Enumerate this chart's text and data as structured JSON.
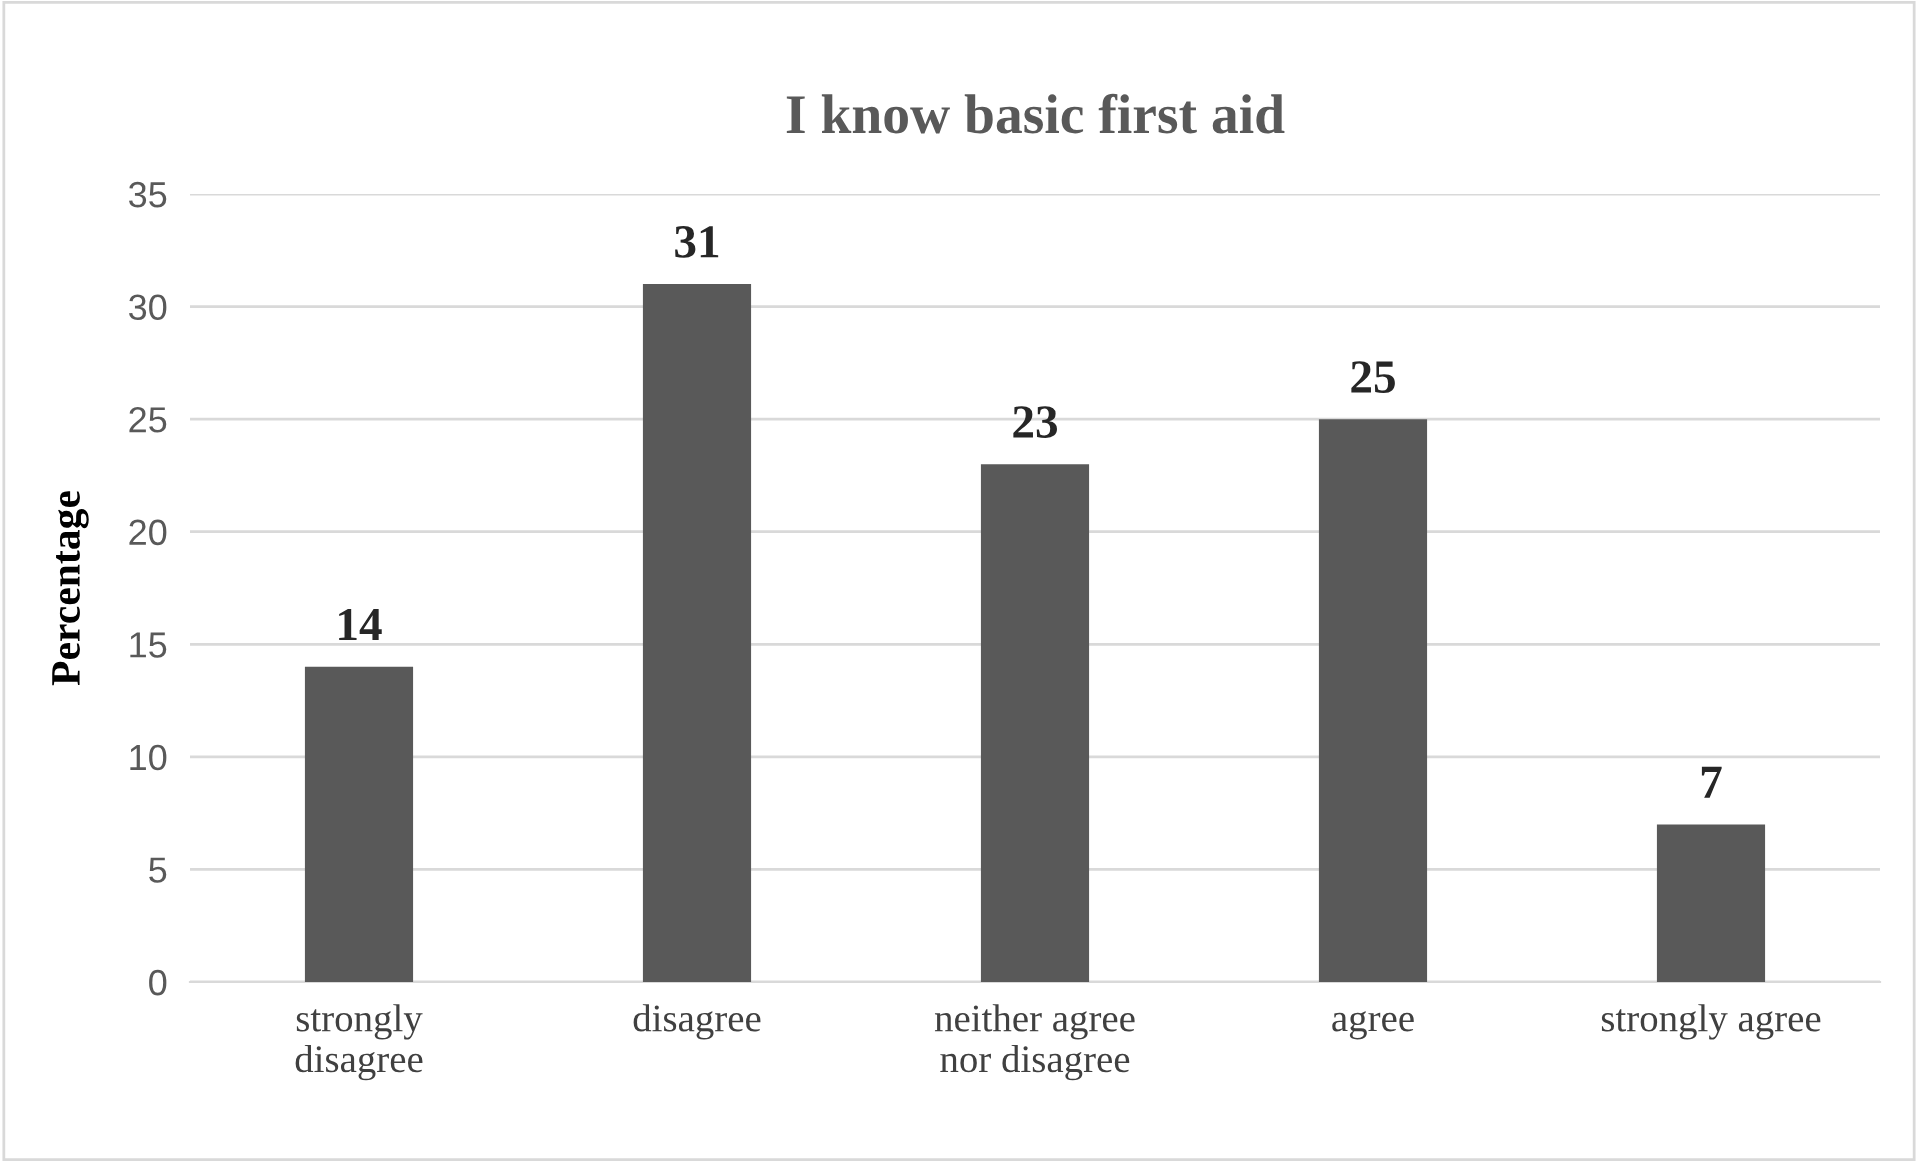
{
  "chart_data": {
    "type": "bar",
    "title": "I know basic first aid",
    "ylabel": "Percentage",
    "categories": [
      "strongly\ndisagree",
      "disagree",
      "neither agree\nnor disagree",
      "agree",
      "strongly agree"
    ],
    "values": [
      14,
      31,
      23,
      25,
      7
    ],
    "color": "#595959",
    "ylim": [
      0,
      35
    ],
    "yticks": [
      0,
      5,
      10,
      15,
      20,
      25,
      30,
      35
    ],
    "grid": "y",
    "data_labels": true,
    "legend": false
  }
}
